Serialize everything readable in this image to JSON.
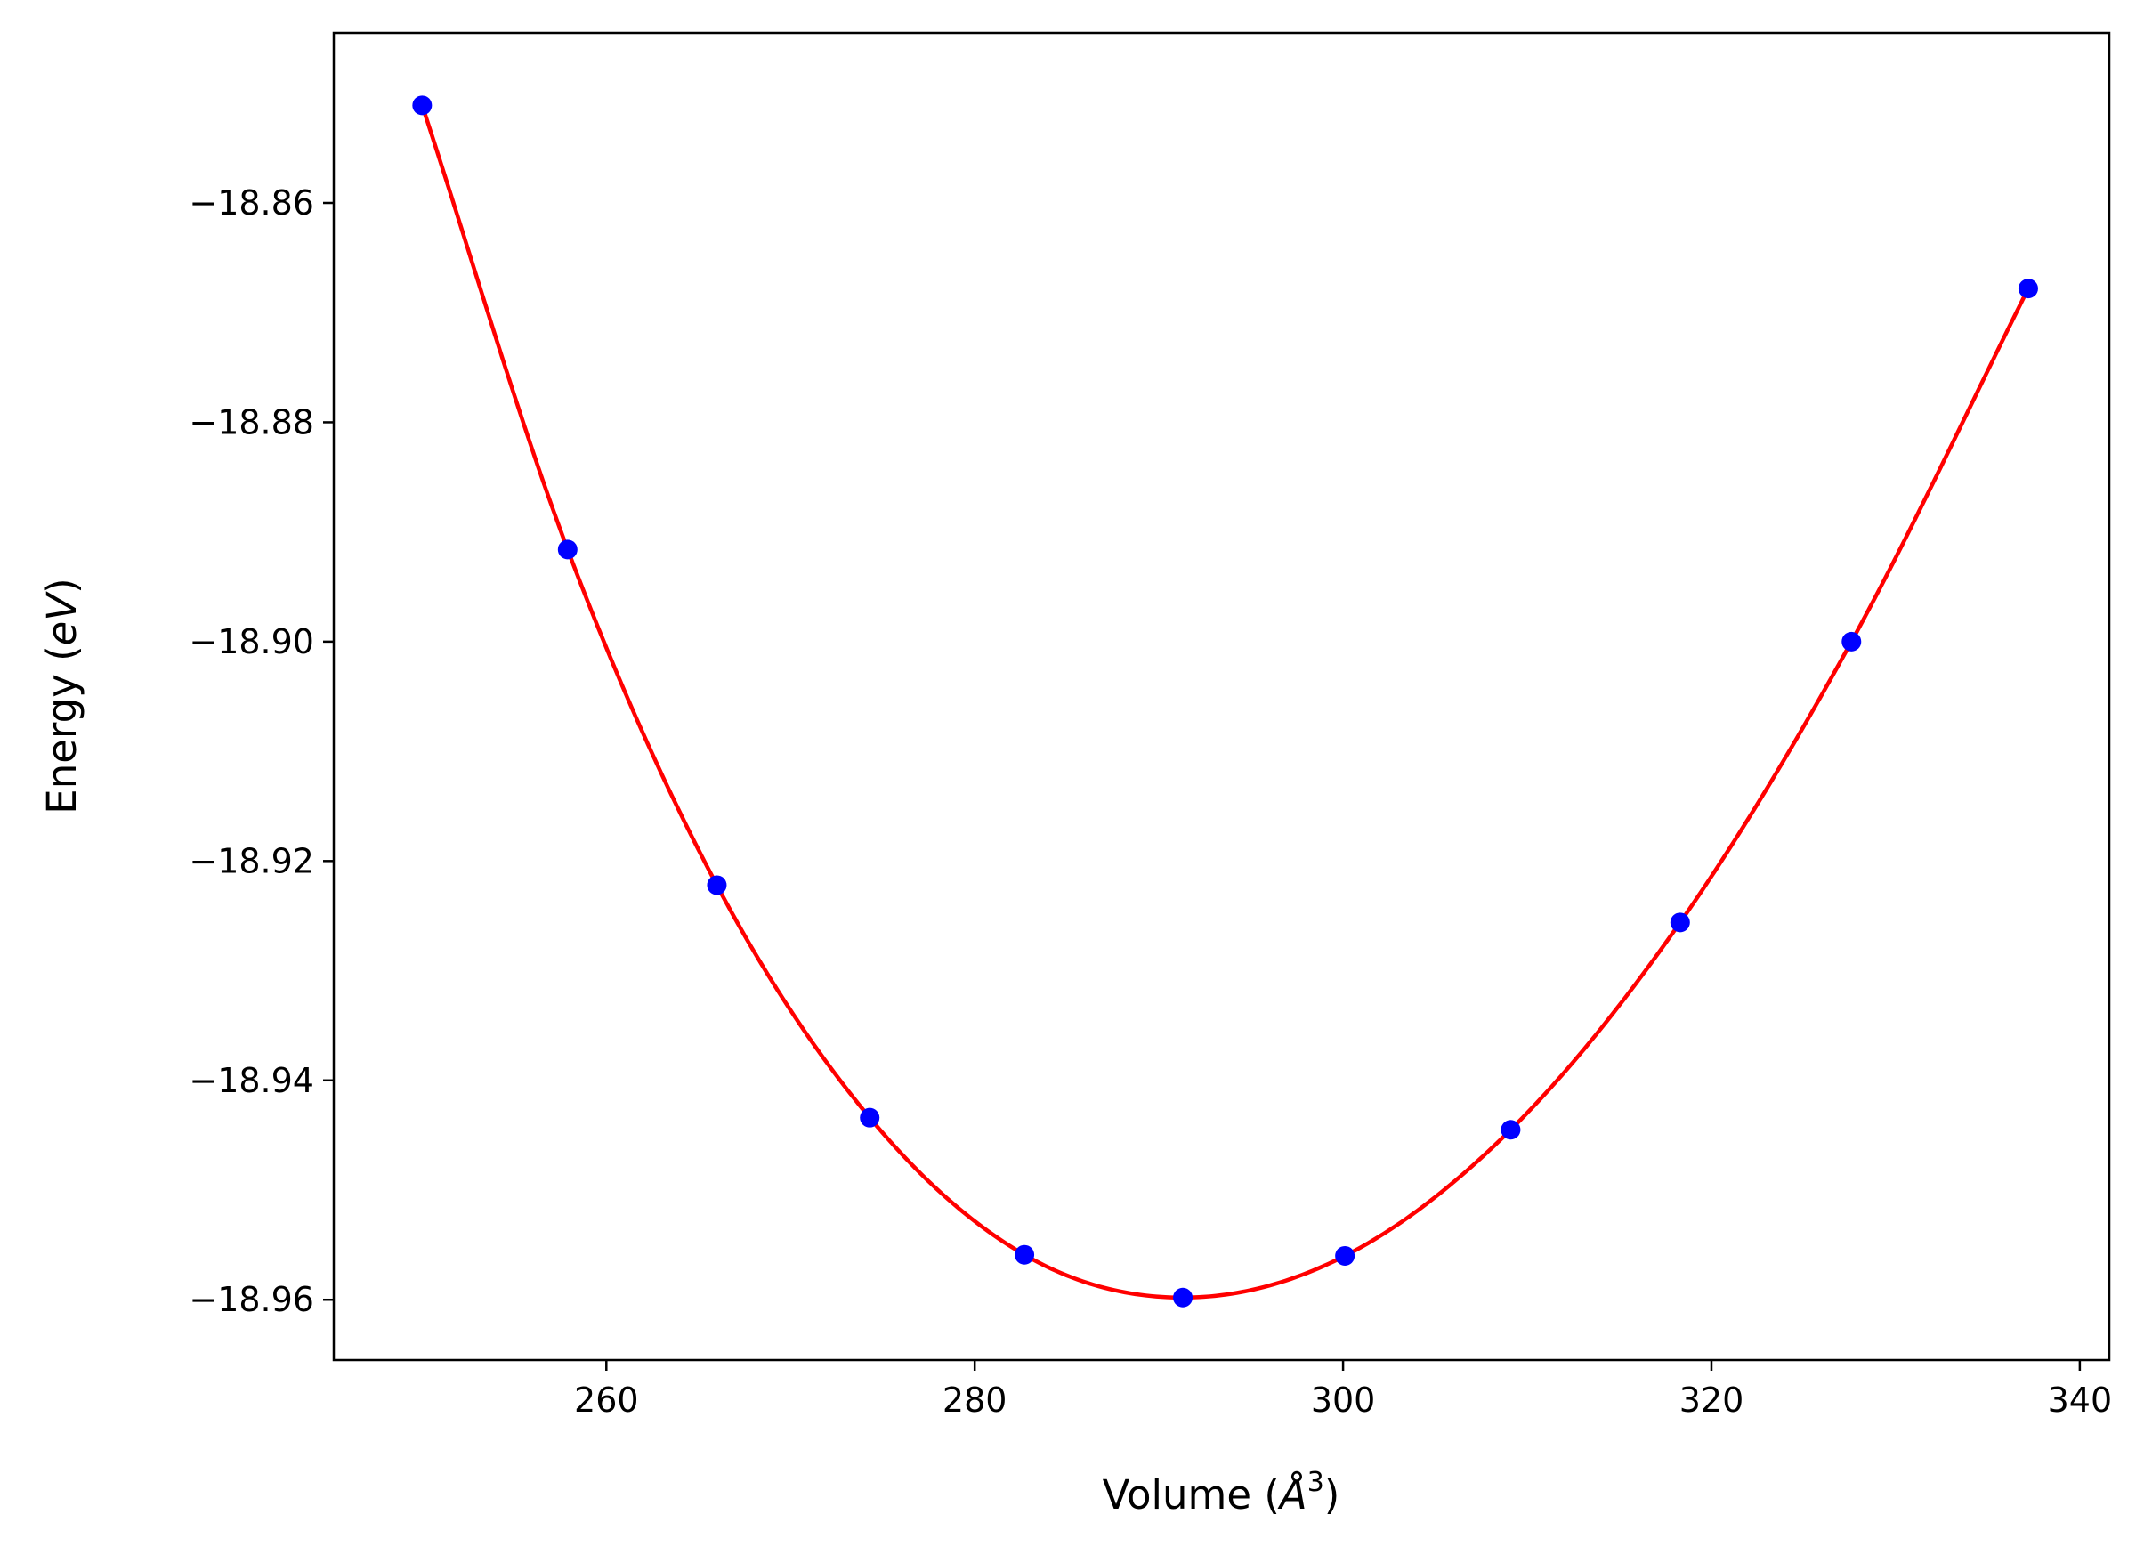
{
  "chart_data": {
    "type": "line",
    "xlabel": "Volume (Å³)",
    "ylabel": "Energy (eV)",
    "xlabel_parts": {
      "prefix": "Volume (",
      "symbol": "Å",
      "exponent": "3",
      "suffix": ")"
    },
    "ylabel_parts": {
      "prefix": "Energy (",
      "unit": "eV",
      "suffix": ")"
    },
    "xlim": [
      245.2,
      341.6
    ],
    "ylim": [
      -18.9655,
      -18.8445
    ],
    "x_ticks": [
      260,
      280,
      300,
      320,
      340
    ],
    "y_ticks": [
      -18.86,
      -18.88,
      -18.9,
      -18.92,
      -18.94,
      -18.96
    ],
    "x_tick_labels": [
      "260",
      "280",
      "300",
      "320",
      "340"
    ],
    "y_tick_labels": [
      "−18.86",
      "−18.88",
      "−18.90",
      "−18.92",
      "−18.94",
      "−18.96"
    ],
    "grid": false,
    "series": [
      {
        "style": "markers",
        "color": "#0000ff",
        "x": [
          250.0,
          257.9,
          266.0,
          274.3,
          282.7,
          291.3,
          300.1,
          309.1,
          318.3,
          327.6,
          337.2
        ],
        "y": [
          -18.8511,
          -18.8916,
          -18.9222,
          -18.9434,
          -18.9559,
          -18.9598,
          -18.956,
          -18.9445,
          -18.9256,
          -18.9,
          -18.8678
        ]
      },
      {
        "style": "line",
        "color": "#ff0000",
        "x": [
          250.0,
          257.9,
          266.0,
          274.3,
          282.7,
          291.3,
          300.1,
          309.1,
          318.3,
          327.6,
          337.2
        ],
        "y": [
          -18.8511,
          -18.8916,
          -18.9222,
          -18.9434,
          -18.9559,
          -18.9598,
          -18.956,
          -18.9445,
          -18.9256,
          -18.9,
          -18.8678
        ]
      }
    ]
  }
}
